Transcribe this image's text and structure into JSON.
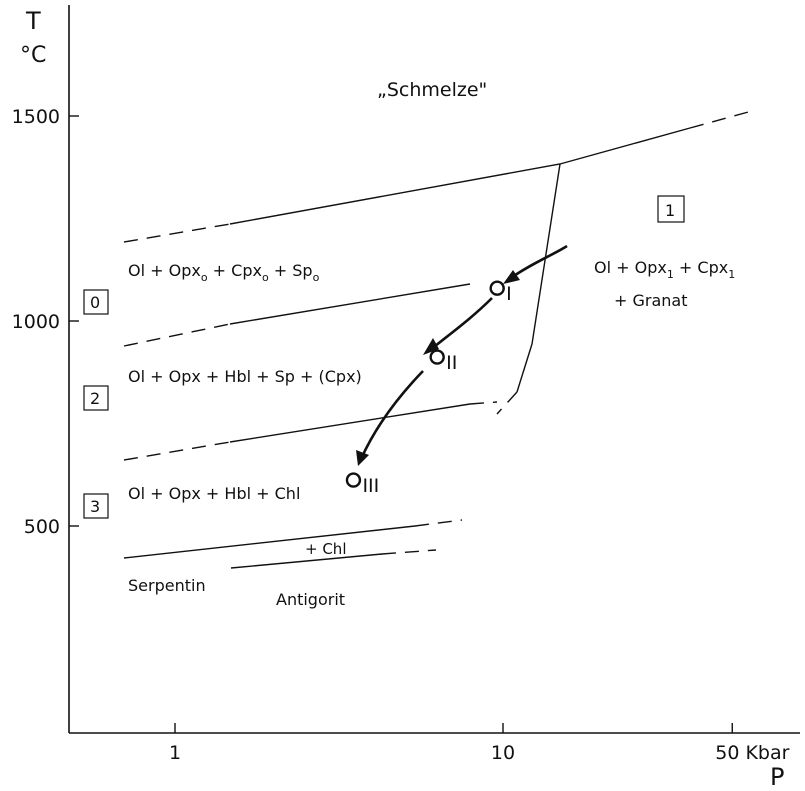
{
  "axes": {
    "y_label_T": "T",
    "y_label_unit": "°C",
    "x_label": "P",
    "x_ticks": [
      {
        "value": 1,
        "label": "1"
      },
      {
        "value": 10,
        "label": "10"
      },
      {
        "value": 50,
        "label": "50 Kbar"
      }
    ],
    "y_ticks": [
      {
        "value": 500,
        "label": "500"
      },
      {
        "value": 1000,
        "label": "1000"
      },
      {
        "value": 1500,
        "label": "1500"
      }
    ]
  },
  "fields": {
    "melt": "„Schmelze\"",
    "field1_box": "1",
    "field1_line1": "Ol + Opx",
    "field1_sub1": "1",
    "field1_mid": " + Cpx",
    "field1_sub2": "1",
    "field1_line2": "+ Granat",
    "field0_box": "0",
    "field0_a": "Ol + Opx",
    "field0_sub_a": "o",
    "field0_b": " + Cpx",
    "field0_sub_b": "o",
    "field0_c": " + Sp",
    "field0_sub_c": "o",
    "field2_box": "2",
    "field2_text": "Ol + Opx + Hbl + Sp + (Cpx)",
    "field3_box": "3",
    "field3_text": "Ol + Opx + Hbl + Chl",
    "chl_text": "+ Chl",
    "serpentin": "Serpentin",
    "antigorit": "Antigorit"
  },
  "points": [
    {
      "id": "I",
      "label": "I",
      "P": 9.6,
      "T": 1080
    },
    {
      "id": "II",
      "label": "II",
      "P": 6.3,
      "T": 912
    },
    {
      "id": "III",
      "label": "III",
      "P": 3.5,
      "T": 612
    }
  ]
}
